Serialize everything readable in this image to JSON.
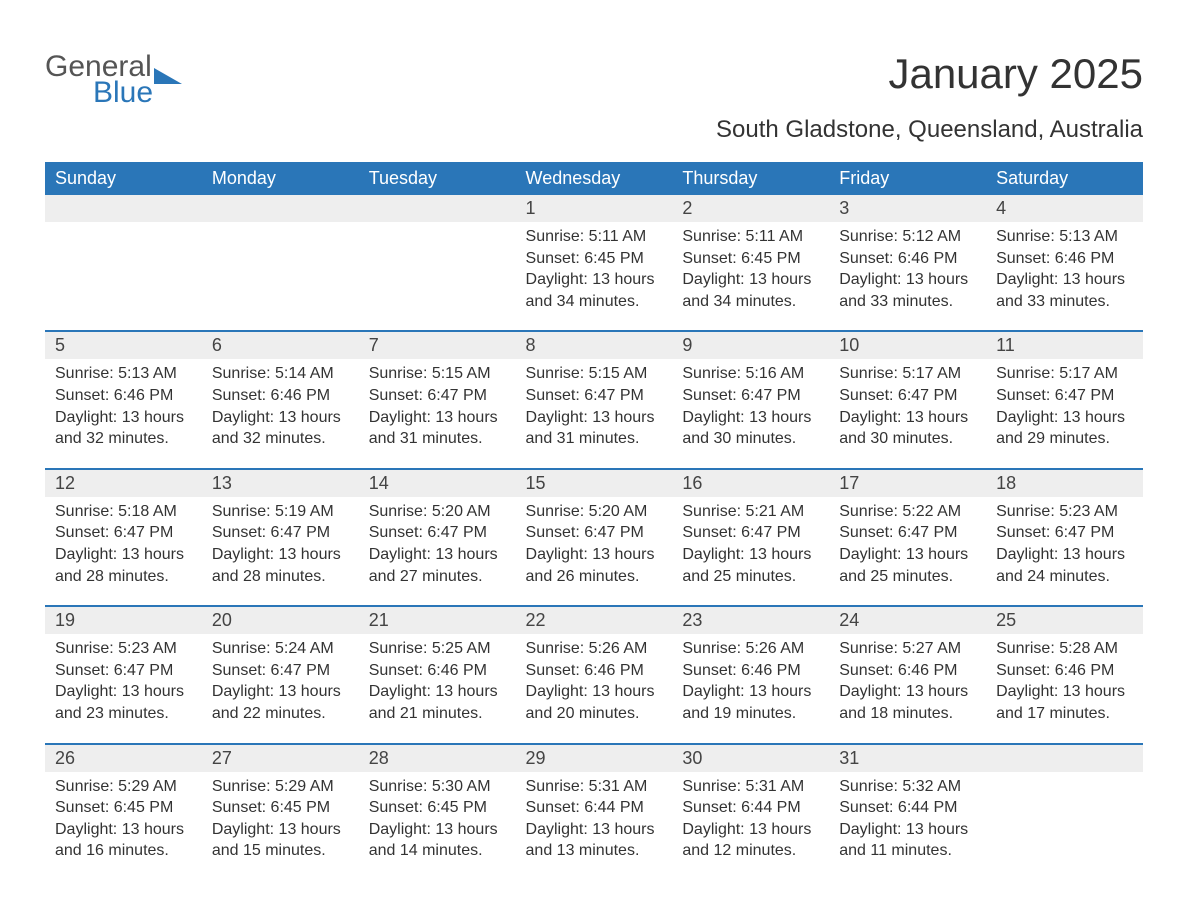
{
  "logo": {
    "general": "General",
    "blue": "Blue"
  },
  "title": "January 2025",
  "location": "South Gladstone, Queensland, Australia",
  "colors": {
    "header_bg": "#2a76b8",
    "header_text": "#ffffff",
    "daynum_bg": "#eeeeee",
    "border": "#2a76b8",
    "text": "#333333",
    "background": "#ffffff"
  },
  "weekdays": [
    "Sunday",
    "Monday",
    "Tuesday",
    "Wednesday",
    "Thursday",
    "Friday",
    "Saturday"
  ],
  "weeks": [
    [
      null,
      null,
      null,
      {
        "day": "1",
        "sunrise": "5:11 AM",
        "sunset": "6:45 PM",
        "daylight": "13 hours and 34 minutes."
      },
      {
        "day": "2",
        "sunrise": "5:11 AM",
        "sunset": "6:45 PM",
        "daylight": "13 hours and 34 minutes."
      },
      {
        "day": "3",
        "sunrise": "5:12 AM",
        "sunset": "6:46 PM",
        "daylight": "13 hours and 33 minutes."
      },
      {
        "day": "4",
        "sunrise": "5:13 AM",
        "sunset": "6:46 PM",
        "daylight": "13 hours and 33 minutes."
      }
    ],
    [
      {
        "day": "5",
        "sunrise": "5:13 AM",
        "sunset": "6:46 PM",
        "daylight": "13 hours and 32 minutes."
      },
      {
        "day": "6",
        "sunrise": "5:14 AM",
        "sunset": "6:46 PM",
        "daylight": "13 hours and 32 minutes."
      },
      {
        "day": "7",
        "sunrise": "5:15 AM",
        "sunset": "6:47 PM",
        "daylight": "13 hours and 31 minutes."
      },
      {
        "day": "8",
        "sunrise": "5:15 AM",
        "sunset": "6:47 PM",
        "daylight": "13 hours and 31 minutes."
      },
      {
        "day": "9",
        "sunrise": "5:16 AM",
        "sunset": "6:47 PM",
        "daylight": "13 hours and 30 minutes."
      },
      {
        "day": "10",
        "sunrise": "5:17 AM",
        "sunset": "6:47 PM",
        "daylight": "13 hours and 30 minutes."
      },
      {
        "day": "11",
        "sunrise": "5:17 AM",
        "sunset": "6:47 PM",
        "daylight": "13 hours and 29 minutes."
      }
    ],
    [
      {
        "day": "12",
        "sunrise": "5:18 AM",
        "sunset": "6:47 PM",
        "daylight": "13 hours and 28 minutes."
      },
      {
        "day": "13",
        "sunrise": "5:19 AM",
        "sunset": "6:47 PM",
        "daylight": "13 hours and 28 minutes."
      },
      {
        "day": "14",
        "sunrise": "5:20 AM",
        "sunset": "6:47 PM",
        "daylight": "13 hours and 27 minutes."
      },
      {
        "day": "15",
        "sunrise": "5:20 AM",
        "sunset": "6:47 PM",
        "daylight": "13 hours and 26 minutes."
      },
      {
        "day": "16",
        "sunrise": "5:21 AM",
        "sunset": "6:47 PM",
        "daylight": "13 hours and 25 minutes."
      },
      {
        "day": "17",
        "sunrise": "5:22 AM",
        "sunset": "6:47 PM",
        "daylight": "13 hours and 25 minutes."
      },
      {
        "day": "18",
        "sunrise": "5:23 AM",
        "sunset": "6:47 PM",
        "daylight": "13 hours and 24 minutes."
      }
    ],
    [
      {
        "day": "19",
        "sunrise": "5:23 AM",
        "sunset": "6:47 PM",
        "daylight": "13 hours and 23 minutes."
      },
      {
        "day": "20",
        "sunrise": "5:24 AM",
        "sunset": "6:47 PM",
        "daylight": "13 hours and 22 minutes."
      },
      {
        "day": "21",
        "sunrise": "5:25 AM",
        "sunset": "6:46 PM",
        "daylight": "13 hours and 21 minutes."
      },
      {
        "day": "22",
        "sunrise": "5:26 AM",
        "sunset": "6:46 PM",
        "daylight": "13 hours and 20 minutes."
      },
      {
        "day": "23",
        "sunrise": "5:26 AM",
        "sunset": "6:46 PM",
        "daylight": "13 hours and 19 minutes."
      },
      {
        "day": "24",
        "sunrise": "5:27 AM",
        "sunset": "6:46 PM",
        "daylight": "13 hours and 18 minutes."
      },
      {
        "day": "25",
        "sunrise": "5:28 AM",
        "sunset": "6:46 PM",
        "daylight": "13 hours and 17 minutes."
      }
    ],
    [
      {
        "day": "26",
        "sunrise": "5:29 AM",
        "sunset": "6:45 PM",
        "daylight": "13 hours and 16 minutes."
      },
      {
        "day": "27",
        "sunrise": "5:29 AM",
        "sunset": "6:45 PM",
        "daylight": "13 hours and 15 minutes."
      },
      {
        "day": "28",
        "sunrise": "5:30 AM",
        "sunset": "6:45 PM",
        "daylight": "13 hours and 14 minutes."
      },
      {
        "day": "29",
        "sunrise": "5:31 AM",
        "sunset": "6:44 PM",
        "daylight": "13 hours and 13 minutes."
      },
      {
        "day": "30",
        "sunrise": "5:31 AM",
        "sunset": "6:44 PM",
        "daylight": "13 hours and 12 minutes."
      },
      {
        "day": "31",
        "sunrise": "5:32 AM",
        "sunset": "6:44 PM",
        "daylight": "13 hours and 11 minutes."
      },
      null
    ]
  ],
  "labels": {
    "sunrise_prefix": "Sunrise: ",
    "sunset_prefix": "Sunset: ",
    "daylight_prefix": "Daylight: "
  }
}
